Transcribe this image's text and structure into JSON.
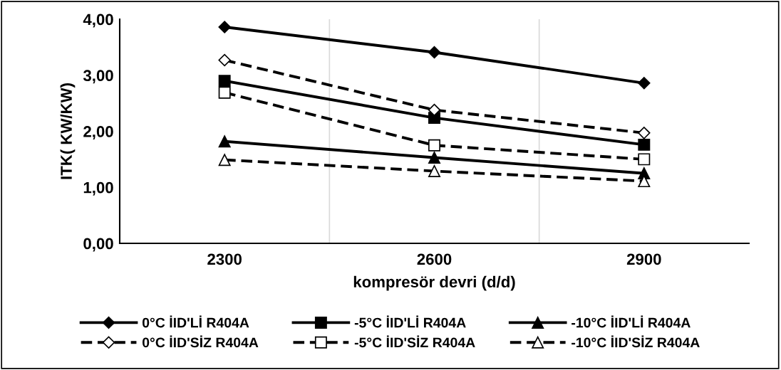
{
  "chart_data": {
    "type": "line",
    "xlabel": "kompresör devri (d/d)",
    "ylabel": "ITK( KW/KW)",
    "categories": [
      "2300",
      "2600",
      "2900"
    ],
    "ylim": [
      0,
      4
    ],
    "yticks": [
      {
        "value": 0,
        "label": "0,00"
      },
      {
        "value": 1,
        "label": "1,00"
      },
      {
        "value": 2,
        "label": "2,00"
      },
      {
        "value": 3,
        "label": "3,00"
      },
      {
        "value": 4,
        "label": "4,00"
      }
    ],
    "grid": "x",
    "legend": "bottom",
    "series": [
      {
        "name": "0°C İID'Lİ R404A",
        "color": "#000000",
        "marker": "diamond",
        "line_style": "solid",
        "values": [
          3.86,
          3.41,
          2.86
        ]
      },
      {
        "name": "-5°C İID'Lİ R404A",
        "color": "#000000",
        "marker": "square",
        "line_style": "solid",
        "values": [
          2.9,
          2.24,
          1.76
        ]
      },
      {
        "name": "-10°C İID'Lİ R404A",
        "color": "#000000",
        "marker": "triangle",
        "line_style": "solid",
        "values": [
          1.82,
          1.53,
          1.25
        ]
      },
      {
        "name": "0°C İID'SİZ R404A",
        "color": "#000000",
        "marker": "diamond",
        "line_style": "dashed",
        "values": [
          3.27,
          2.38,
          1.97
        ]
      },
      {
        "name": "-5°C İID'SİZ R404A",
        "color": "#000000",
        "marker": "square",
        "line_style": "dashed",
        "values": [
          2.69,
          1.75,
          1.5
        ]
      },
      {
        "name": "-10°C İID'SİZ R404A",
        "color": "#000000",
        "marker": "triangle",
        "line_style": "dashed",
        "values": [
          1.49,
          1.29,
          1.11
        ]
      }
    ]
  }
}
